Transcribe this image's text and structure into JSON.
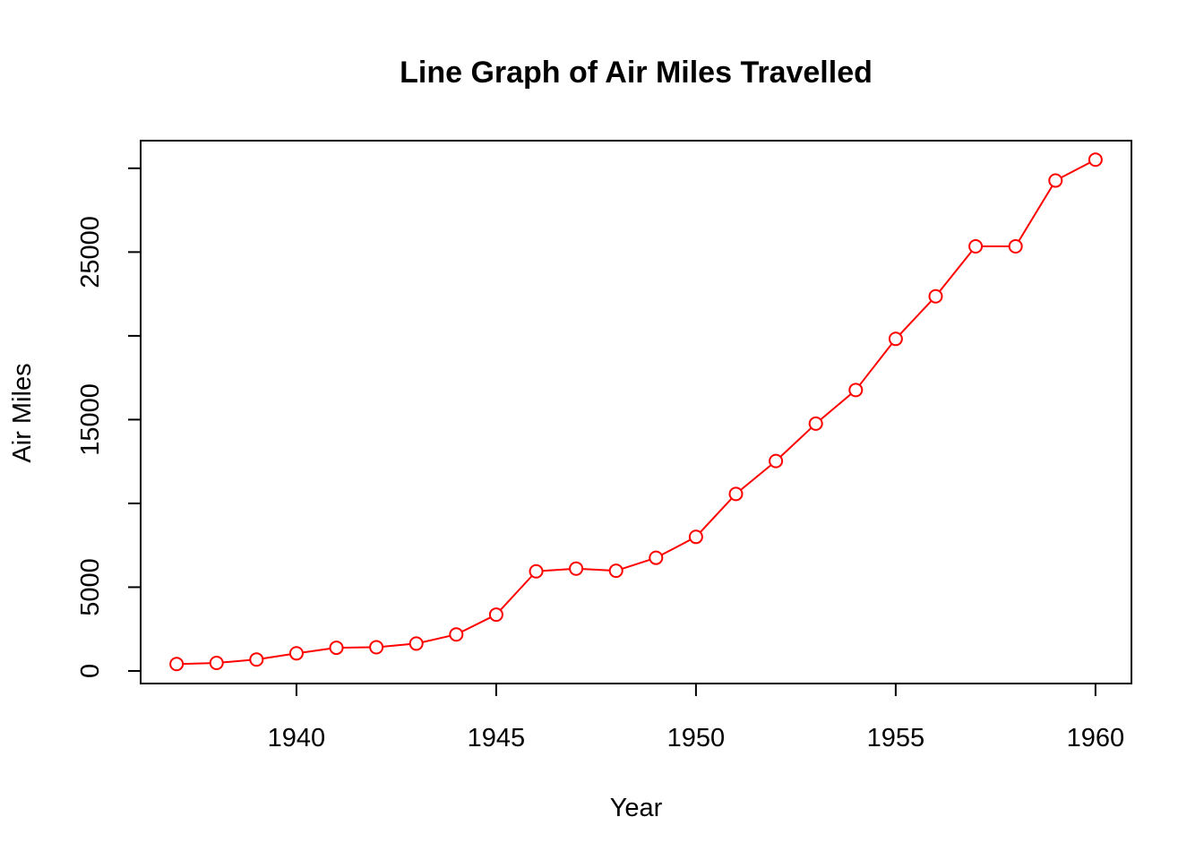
{
  "chart_data": {
    "type": "line",
    "title": "Line Graph of Air Miles Travelled",
    "xlabel": "Year",
    "ylabel": "Air Miles",
    "x": [
      1937,
      1938,
      1939,
      1940,
      1941,
      1942,
      1943,
      1944,
      1945,
      1946,
      1947,
      1948,
      1949,
      1950,
      1951,
      1952,
      1953,
      1954,
      1955,
      1956,
      1957,
      1958,
      1959,
      1960
    ],
    "series": [
      {
        "color": "#ff0000",
        "values": [
          412,
          480,
          683,
          1052,
          1385,
          1418,
          1634,
          2178,
          3362,
          5948,
          6109,
          5981,
          6753,
          8003,
          10566,
          12528,
          14760,
          16769,
          19819,
          22362,
          25340,
          25343,
          29269,
          30514
        ]
      }
    ],
    "xlim": [
      1936.1,
      1960.9
    ],
    "ylim": [
      -750,
      31650
    ],
    "x_ticks": [
      1940,
      1945,
      1950,
      1955,
      1960
    ],
    "y_ticks": [
      0,
      5000,
      10000,
      15000,
      20000,
      25000,
      30000
    ],
    "y_tick_labels": [
      "0",
      "5000",
      "",
      "15000",
      "",
      "25000",
      ""
    ],
    "marker": "open-circle",
    "grid": false,
    "legend": "none"
  }
}
